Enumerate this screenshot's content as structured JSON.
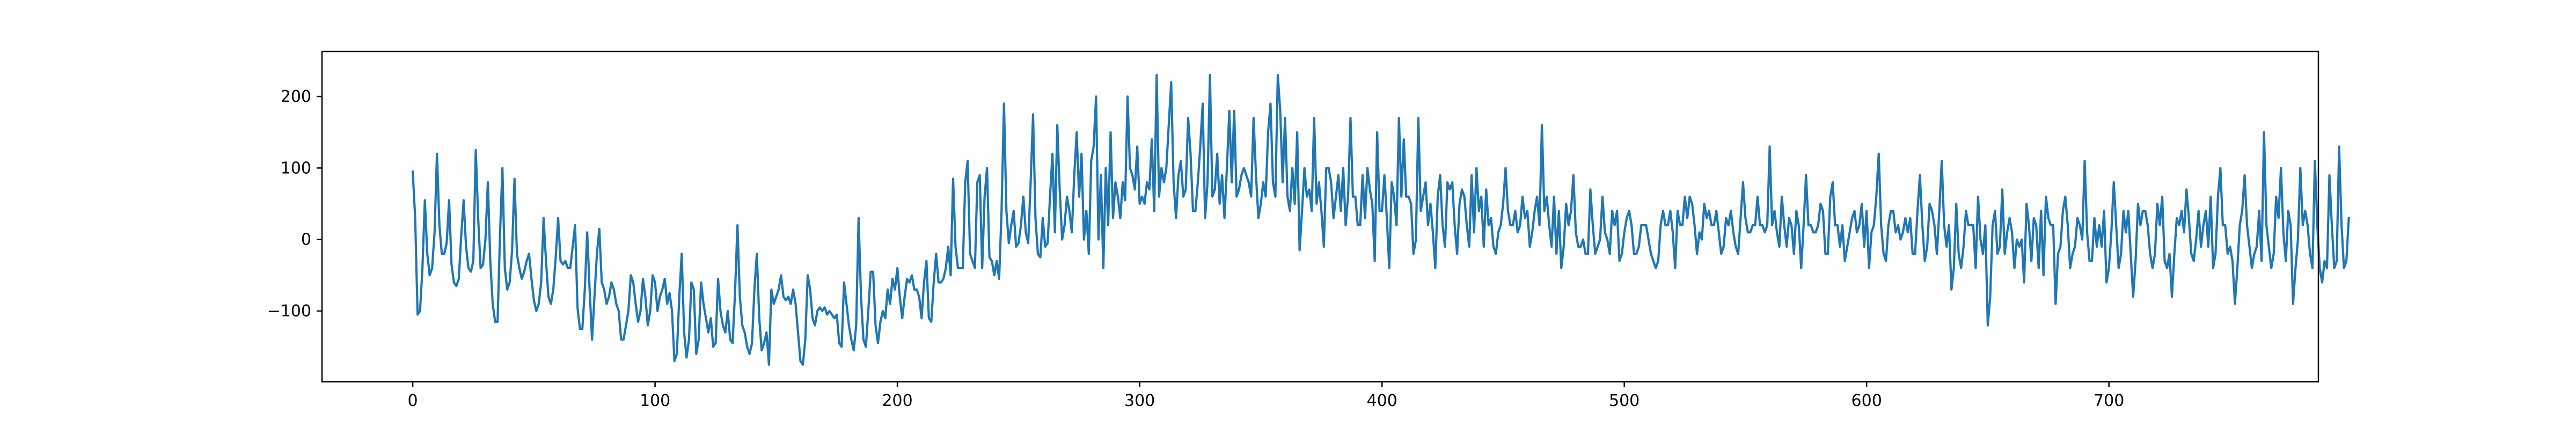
{
  "chart_data": {
    "type": "line",
    "title": "",
    "xlabel": "",
    "ylabel": "",
    "xlim": [
      -37.45,
      786.45
    ],
    "ylim": [
      -199,
      263
    ],
    "x_ticks": [
      0,
      100,
      200,
      300,
      400,
      500,
      600,
      700
    ],
    "y_ticks": [
      -100,
      0,
      100,
      200
    ],
    "grid": false,
    "legend": "none",
    "series": [
      {
        "color": "#1f77b4",
        "x_start": 0,
        "x_step": 1,
        "values": [
          95,
          30,
          -105,
          -100,
          -40,
          55,
          -20,
          -50,
          -40,
          10,
          120,
          20,
          -20,
          -20,
          -5,
          55,
          -35,
          -60,
          -65,
          -55,
          5,
          55,
          -10,
          -40,
          -45,
          -30,
          125,
          30,
          -40,
          -35,
          0,
          80,
          -30,
          -90,
          -115,
          -115,
          5,
          100,
          -40,
          -70,
          -60,
          -15,
          85,
          -20,
          -40,
          -55,
          -45,
          -30,
          -20,
          -55,
          -85,
          -100,
          -90,
          -60,
          30,
          -30,
          -80,
          -90,
          -70,
          -25,
          30,
          -30,
          -35,
          -30,
          -40,
          -40,
          -10,
          20,
          -95,
          -125,
          -125,
          -70,
          10,
          -70,
          -140,
          -80,
          -20,
          15,
          -60,
          -70,
          -90,
          -80,
          -60,
          -70,
          -90,
          -100,
          -140,
          -140,
          -120,
          -100,
          -50,
          -60,
          -90,
          -115,
          -100,
          -55,
          -80,
          -120,
          -100,
          -50,
          -60,
          -100,
          -80,
          -70,
          -55,
          -90,
          -75,
          -100,
          -170,
          -160,
          -80,
          -20,
          -130,
          -165,
          -140,
          -60,
          -70,
          -160,
          -140,
          -60,
          -90,
          -110,
          -130,
          -110,
          -150,
          -145,
          -55,
          -100,
          -120,
          -130,
          -100,
          -140,
          -145,
          -75,
          20,
          -80,
          -120,
          -130,
          -150,
          -160,
          -145,
          -70,
          -20,
          -110,
          -155,
          -145,
          -130,
          -175,
          -70,
          -90,
          -80,
          -70,
          -50,
          -80,
          -85,
          -80,
          -90,
          -70,
          -90,
          -130,
          -170,
          -175,
          -140,
          -50,
          -70,
          -110,
          -120,
          -100,
          -95,
          -100,
          -95,
          -105,
          -100,
          -105,
          -110,
          -105,
          -145,
          -150,
          -60,
          -90,
          -120,
          -140,
          -155,
          -120,
          30,
          -80,
          -140,
          -150,
          -100,
          -45,
          -45,
          -120,
          -145,
          -115,
          -100,
          -110,
          -70,
          -90,
          -55,
          -70,
          -40,
          -80,
          -110,
          -80,
          -55,
          -60,
          -50,
          -70,
          -70,
          -80,
          -110,
          -60,
          -30,
          -110,
          -115,
          -60,
          -20,
          -60,
          -60,
          -55,
          -40,
          -10,
          -50,
          85,
          -10,
          -40,
          -40,
          -40,
          80,
          110,
          -20,
          -30,
          -40,
          80,
          90,
          -40,
          60,
          100,
          -25,
          -30,
          -50,
          -30,
          -55,
          40,
          190,
          40,
          -5,
          20,
          40,
          -10,
          -5,
          20,
          60,
          10,
          -5,
          80,
          175,
          30,
          -20,
          -25,
          30,
          -10,
          -5,
          60,
          120,
          10,
          160,
          70,
          0,
          20,
          60,
          40,
          10,
          90,
          150,
          60,
          120,
          0,
          40,
          -20,
          110,
          130,
          200,
          0,
          90,
          -40,
          100,
          20,
          150,
          30,
          80,
          60,
          30,
          80,
          55,
          200,
          100,
          90,
          70,
          130,
          50,
          60,
          50,
          80,
          70,
          140,
          40,
          230,
          60,
          100,
          80,
          100,
          160,
          220,
          80,
          30,
          90,
          110,
          60,
          70,
          170,
          120,
          40,
          40,
          80,
          130,
          190,
          30,
          80,
          230,
          60,
          70,
          120,
          50,
          90,
          30,
          100,
          180,
          80,
          180,
          60,
          70,
          90,
          100,
          90,
          80,
          60,
          170,
          90,
          30,
          50,
          80,
          60,
          150,
          190,
          80,
          60,
          230,
          180,
          80,
          170,
          60,
          40,
          100,
          50,
          150,
          -15,
          40,
          100,
          60,
          70,
          40,
          170,
          50,
          80,
          40,
          -10,
          100,
          100,
          80,
          30,
          60,
          90,
          40,
          100,
          20,
          60,
          170,
          60,
          60,
          20,
          20,
          90,
          30,
          100,
          70,
          50,
          -30,
          150,
          40,
          40,
          90,
          30,
          -40,
          80,
          60,
          20,
          170,
          60,
          140,
          60,
          60,
          50,
          -20,
          0,
          170,
          40,
          60,
          80,
          20,
          50,
          10,
          -40,
          60,
          90,
          20,
          -10,
          80,
          70,
          80,
          20,
          -20,
          50,
          70,
          60,
          20,
          -10,
          90,
          10,
          100,
          40,
          60,
          -10,
          70,
          20,
          30,
          -10,
          -20,
          10,
          20,
          50,
          100,
          40,
          20,
          20,
          40,
          10,
          20,
          60,
          30,
          40,
          -10,
          10,
          40,
          60,
          20,
          160,
          40,
          60,
          20,
          -10,
          60,
          -20,
          40,
          -40,
          -10,
          50,
          20,
          40,
          90,
          10,
          -10,
          -10,
          0,
          -20,
          -20,
          70,
          20,
          -20,
          -10,
          0,
          60,
          10,
          0,
          -20,
          40,
          20,
          40,
          -30,
          -20,
          10,
          30,
          40,
          20,
          -20,
          -20,
          -10,
          20,
          20,
          20,
          0,
          -20,
          -30,
          -40,
          -30,
          20,
          40,
          20,
          20,
          40,
          10,
          -40,
          40,
          20,
          20,
          60,
          30,
          60,
          50,
          20,
          -20,
          10,
          0,
          50,
          30,
          40,
          20,
          20,
          40,
          10,
          -20,
          -10,
          30,
          20,
          40,
          10,
          -10,
          -20,
          30,
          80,
          30,
          10,
          10,
          20,
          20,
          60,
          20,
          20,
          10,
          20,
          130,
          20,
          40,
          10,
          -10,
          60,
          20,
          -10,
          30,
          20,
          -20,
          40,
          20,
          -40,
          20,
          90,
          20,
          20,
          10,
          10,
          20,
          50,
          40,
          -20,
          -20,
          60,
          80,
          20,
          20,
          -10,
          20,
          -30,
          -10,
          10,
          30,
          40,
          10,
          20,
          50,
          -10,
          40,
          -40,
          10,
          20,
          60,
          120,
          20,
          -20,
          -30,
          20,
          40,
          40,
          10,
          20,
          0,
          10,
          30,
          10,
          30,
          -20,
          -20,
          40,
          90,
          20,
          -30,
          -10,
          50,
          40,
          20,
          -20,
          40,
          110,
          20,
          -10,
          20,
          -70,
          -40,
          50,
          -20,
          -40,
          -10,
          40,
          20,
          20,
          20,
          -40,
          60,
          0,
          -20,
          20,
          -120,
          -80,
          20,
          40,
          -20,
          -10,
          70,
          -20,
          10,
          30,
          10,
          -40,
          0,
          -10,
          0,
          -60,
          50,
          20,
          -30,
          30,
          20,
          -40,
          40,
          -50,
          60,
          30,
          20,
          20,
          -90,
          -20,
          -10,
          40,
          60,
          20,
          -40,
          -20,
          -10,
          30,
          20,
          0,
          110,
          10,
          -30,
          -30,
          30,
          -10,
          20,
          -10,
          40,
          -60,
          -40,
          10,
          80,
          20,
          -40,
          -20,
          40,
          10,
          40,
          -20,
          -80,
          -30,
          50,
          20,
          40,
          40,
          20,
          -20,
          -40,
          -20,
          50,
          20,
          60,
          -30,
          -40,
          -20,
          -80,
          -20,
          30,
          20,
          40,
          10,
          70,
          30,
          -20,
          -30,
          0,
          40,
          -10,
          20,
          40,
          -10,
          60,
          -40,
          -20,
          60,
          100,
          20,
          20,
          -20,
          -10,
          -30,
          -90,
          -40,
          20,
          40,
          90,
          20,
          -10,
          -40,
          -20,
          -10,
          40,
          -30,
          150,
          20,
          -10,
          -40,
          -20,
          60,
          30,
          100,
          10,
          -30,
          40,
          20,
          -90,
          -40,
          0,
          100,
          20,
          40,
          20,
          -20,
          -40,
          110,
          20,
          -40,
          -60,
          -30,
          -40,
          90,
          20,
          -40,
          -30,
          130,
          20,
          -40,
          -30,
          30
        ]
      }
    ]
  }
}
